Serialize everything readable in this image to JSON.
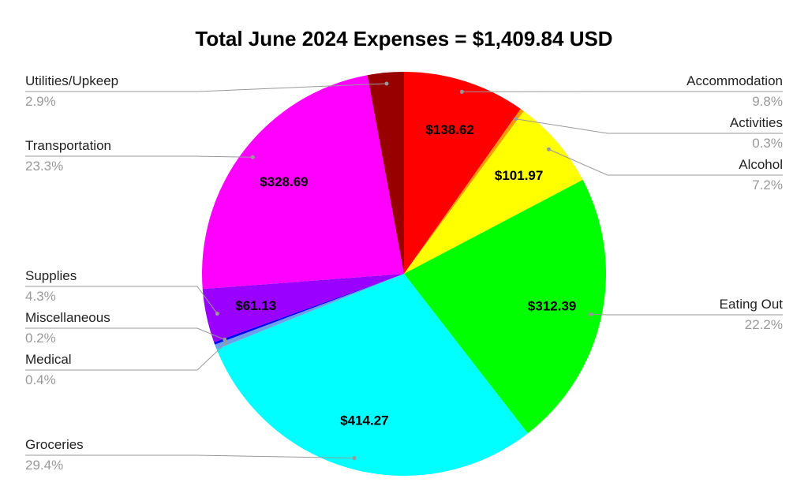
{
  "chart_data": {
    "type": "pie",
    "title": "Total June 2024 Expenses = $1,409.84 USD",
    "slices": [
      {
        "label": "Accommodation",
        "percent_label": "9.8%",
        "percent": 9.8,
        "value_label": "$138.62",
        "color": "#ff0000"
      },
      {
        "label": "Activities",
        "percent_label": "0.3%",
        "percent": 0.3,
        "value_label": "",
        "color": "#ff9900"
      },
      {
        "label": "Alcohol",
        "percent_label": "7.2%",
        "percent": 7.2,
        "value_label": "$101.97",
        "color": "#ffff00"
      },
      {
        "label": "Eating Out",
        "percent_label": "22.2%",
        "percent": 22.2,
        "value_label": "$312.39",
        "color": "#00ff00"
      },
      {
        "label": "Groceries",
        "percent_label": "29.4%",
        "percent": 29.4,
        "value_label": "$414.27",
        "color": "#00ffff"
      },
      {
        "label": "Medical",
        "percent_label": "0.4%",
        "percent": 0.4,
        "value_label": "",
        "color": "#6d9eeb"
      },
      {
        "label": "Miscellaneous",
        "percent_label": "0.2%",
        "percent": 0.2,
        "value_label": "",
        "color": "#0000ff"
      },
      {
        "label": "Supplies",
        "percent_label": "4.3%",
        "percent": 4.3,
        "value_label": "$61.13",
        "color": "#9900ff"
      },
      {
        "label": "Transportation",
        "percent_label": "23.3%",
        "percent": 23.3,
        "value_label": "$328.69",
        "color": "#ff00ff"
      },
      {
        "label": "Utilities/Upkeep",
        "percent_label": "2.9%",
        "percent": 2.9,
        "value_label": "",
        "color": "#980000"
      }
    ],
    "start_angle": "12 o'clock",
    "direction": "clockwise",
    "legend": "leader-line labels"
  }
}
